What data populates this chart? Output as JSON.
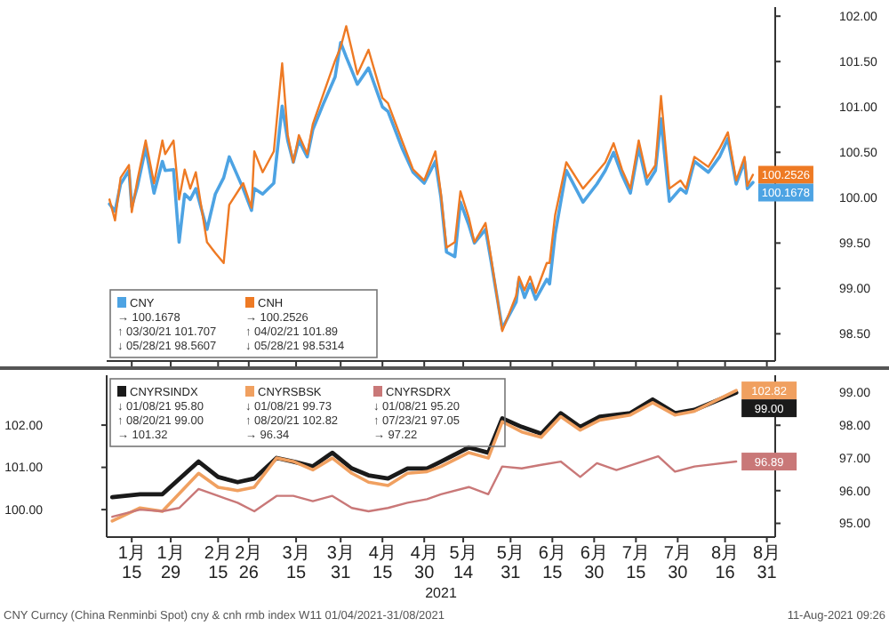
{
  "chart_data": [
    {
      "type": "line",
      "x": [
        "2021-01-07",
        "2021-01-09",
        "2021-01-11",
        "2021-01-14",
        "2021-01-15",
        "2021-01-17",
        "2021-01-20",
        "2021-01-23",
        "2021-01-26",
        "2021-01-27",
        "2021-01-30",
        "2021-02-01",
        "2021-02-03",
        "2021-02-05",
        "2021-02-07",
        "2021-02-11",
        "2021-02-14",
        "2021-02-17",
        "2021-02-19",
        "2021-02-24",
        "2021-02-27",
        "2021-02-28",
        "2021-03-03",
        "2021-03-07",
        "2021-03-10",
        "2021-03-12",
        "2021-03-14",
        "2021-03-16",
        "2021-03-19",
        "2021-03-21",
        "2021-03-25",
        "2021-03-29",
        "2021-03-31",
        "2021-04-02",
        "2021-04-04",
        "2021-04-06",
        "2021-04-10",
        "2021-04-15",
        "2021-04-17",
        "2021-04-22",
        "2021-04-26",
        "2021-04-30",
        "2021-05-04",
        "2021-05-06",
        "2021-05-08",
        "2021-05-11",
        "2021-05-13",
        "2021-05-16",
        "2021-05-18",
        "2021-05-22",
        "2021-05-24",
        "2021-05-28",
        "2021-06-02",
        "2021-06-03",
        "2021-06-05",
        "2021-06-07",
        "2021-06-09",
        "2021-06-13",
        "2021-06-14",
        "2021-06-16",
        "2021-06-20",
        "2021-06-26",
        "2021-07-01",
        "2021-07-04",
        "2021-07-07",
        "2021-07-10",
        "2021-07-13",
        "2021-07-16",
        "2021-07-19",
        "2021-07-22",
        "2021-07-24",
        "2021-07-27",
        "2021-07-31",
        "2021-08-02",
        "2021-08-05",
        "2021-08-10",
        "2021-08-14",
        "2021-08-17",
        "2021-08-20",
        "2021-08-23",
        "2021-08-24",
        "2021-08-26"
      ],
      "xlim": [
        "2021-01-06",
        "2021-09-03"
      ],
      "xticks": [
        {
          "value": "2021-01-15",
          "label": null
        },
        {
          "value": "2021-01-29",
          "label": null
        },
        {
          "value": "2021-02-15",
          "label": null
        },
        {
          "value": "2021-02-26",
          "label": null
        },
        {
          "value": "2021-03-15",
          "label": null
        },
        {
          "value": "2021-03-31",
          "label": null
        },
        {
          "value": "2021-04-15",
          "label": null
        },
        {
          "value": "2021-04-30",
          "label": null
        },
        {
          "value": "2021-05-14",
          "label": null
        },
        {
          "value": "2021-05-31",
          "label": null
        },
        {
          "value": "2021-06-15",
          "label": null
        },
        {
          "value": "2021-06-30",
          "label": null
        },
        {
          "value": "2021-07-15",
          "label": null
        },
        {
          "value": "2021-07-30",
          "label": null
        },
        {
          "value": "2021-08-16",
          "label": null
        },
        {
          "value": "2021-08-31",
          "label": null
        }
      ],
      "ylim": [
        98.2,
        102.1
      ],
      "yticks": [
        {
          "value": 98.5,
          "label": "98.50"
        },
        {
          "value": 99,
          "label": "99.00"
        },
        {
          "value": 99.5,
          "label": "99.50"
        },
        {
          "value": 100,
          "label": "100.00"
        },
        {
          "value": 100.5,
          "label": "100.50"
        },
        {
          "value": 101,
          "label": "101.00"
        },
        {
          "value": 101.5,
          "label": "101.50"
        },
        {
          "value": 102,
          "label": "102.00"
        }
      ],
      "tick_labels": "y",
      "legend": "bottom left",
      "series": [
        {
          "name": "CNY",
          "color": "#4da3e3",
          "values": [
            99.93,
            99.85,
            100.15,
            100.3,
            99.9,
            100.12,
            100.55,
            100.05,
            100.4,
            100.3,
            100.31,
            99.51,
            100.04,
            99.98,
            100.1,
            99.65,
            100.04,
            100.22,
            100.45,
            100.1,
            99.86,
            100.1,
            100.04,
            100.16,
            101.01,
            100.63,
            100.39,
            100.63,
            100.45,
            100.75,
            101.05,
            101.33,
            101.71,
            101.55,
            101.4,
            101.25,
            101.43,
            101.0,
            100.95,
            100.55,
            100.28,
            100.16,
            100.4,
            100.0,
            99.4,
            99.35,
            99.95,
            99.7,
            99.5,
            99.65,
            99.3,
            98.56,
            98.85,
            99.1,
            98.9,
            99.05,
            98.88,
            99.1,
            99.05,
            99.6,
            100.3,
            99.95,
            100.15,
            100.3,
            100.5,
            100.25,
            100.05,
            100.55,
            100.15,
            100.3,
            100.87,
            99.96,
            100.1,
            100.05,
            100.4,
            100.28,
            100.45,
            100.65,
            100.15,
            100.4,
            100.1,
            100.1678
          ],
          "value_labels": [
            null,
            null,
            null,
            null,
            null,
            null,
            null,
            null,
            null,
            null,
            null,
            null,
            null,
            null,
            null,
            null,
            null,
            null,
            null,
            null,
            null,
            null,
            null,
            null,
            null,
            null,
            null,
            null,
            null,
            null,
            null,
            null,
            null,
            null,
            null,
            null,
            null,
            null,
            null,
            null,
            null,
            null,
            null,
            null,
            null,
            null,
            null,
            null,
            null,
            null,
            null,
            null,
            null,
            null,
            null,
            null,
            null,
            null,
            null,
            null,
            null,
            null,
            null,
            null,
            null,
            null,
            null,
            null,
            null,
            null,
            null,
            null,
            null,
            null,
            null,
            null,
            null,
            null,
            null,
            null,
            null,
            "100.1678"
          ]
        },
        {
          "name": "CNH",
          "color": "#ee7a24",
          "values": [
            99.98,
            99.75,
            100.22,
            100.36,
            99.84,
            100.19,
            100.63,
            100.16,
            100.63,
            100.48,
            100.63,
            99.98,
            100.31,
            100.1,
            100.28,
            99.51,
            99.39,
            99.28,
            99.92,
            100.16,
            99.89,
            100.51,
            100.28,
            100.51,
            101.48,
            100.69,
            100.39,
            100.69,
            100.48,
            100.81,
            101.16,
            101.51,
            101.66,
            101.89,
            101.63,
            101.36,
            101.63,
            101.1,
            101.04,
            100.63,
            100.31,
            100.19,
            100.51,
            100.04,
            99.45,
            99.51,
            100.07,
            99.78,
            99.51,
            99.72,
            99.34,
            98.53,
            98.92,
            99.13,
            98.98,
            99.13,
            98.95,
            99.28,
            99.28,
            99.81,
            100.39,
            100.1,
            100.28,
            100.39,
            100.6,
            100.31,
            100.1,
            100.63,
            100.22,
            100.36,
            101.12,
            100.1,
            100.19,
            100.1,
            100.45,
            100.34,
            100.54,
            100.72,
            100.19,
            100.45,
            100.13,
            100.2526
          ],
          "value_labels": [
            null,
            null,
            null,
            null,
            null,
            null,
            null,
            null,
            null,
            null,
            null,
            null,
            null,
            null,
            null,
            null,
            null,
            null,
            null,
            null,
            null,
            null,
            null,
            null,
            null,
            null,
            null,
            null,
            null,
            null,
            null,
            null,
            null,
            null,
            null,
            null,
            null,
            null,
            null,
            null,
            null,
            null,
            null,
            null,
            null,
            null,
            null,
            null,
            null,
            null,
            null,
            null,
            null,
            null,
            null,
            null,
            null,
            null,
            null,
            null,
            null,
            null,
            null,
            null,
            null,
            null,
            null,
            null,
            null,
            null,
            null,
            null,
            null,
            null,
            null,
            null,
            null,
            null,
            null,
            null,
            null,
            "100.2526"
          ]
        }
      ],
      "annotations": [
        "→ 100.1678",
        "→ 100.2526",
        "↑ 03/30/21 101.707",
        "↑ 04/02/21 101.89",
        "↓ 05/28/21 98.5607",
        "↓ 05/28/21 98.5314"
      ]
    },
    {
      "type": "line",
      "xlim": [
        "2021-01-06",
        "2021-09-03"
      ],
      "xticks": [
        {
          "value": "2021-01-15",
          "label": "1月 15"
        },
        {
          "value": "2021-01-29",
          "label": "1月 29"
        },
        {
          "value": "2021-02-15",
          "label": "2月 15"
        },
        {
          "value": "2021-02-26",
          "label": "2月 26"
        },
        {
          "value": "2021-03-15",
          "label": "3月 15"
        },
        {
          "value": "2021-03-31",
          "label": "3月 31"
        },
        {
          "value": "2021-04-15",
          "label": "4月 15"
        },
        {
          "value": "2021-04-30",
          "label": "4月 30"
        },
        {
          "value": "2021-05-14",
          "label": "5月 14"
        },
        {
          "value": "2021-05-31",
          "label": "5月 31"
        },
        {
          "value": "2021-06-15",
          "label": "6月 15"
        },
        {
          "value": "2021-06-30",
          "label": "6月 30"
        },
        {
          "value": "2021-07-15",
          "label": "7月 15"
        },
        {
          "value": "2021-07-30",
          "label": "7月 30"
        },
        {
          "value": "2021-08-16",
          "label": "8月 16"
        },
        {
          "value": "2021-08-31",
          "label": "8月 31"
        }
      ],
      "xlabel": "2021",
      "ylim": [
        99.35,
        103.18
      ],
      "yticks": [
        {
          "value": 100,
          "label": "100.00"
        },
        {
          "value": 101,
          "label": "101.00"
        },
        {
          "value": 102,
          "label": "102.00"
        }
      ],
      "y2lim": [
        94.58,
        99.53
      ],
      "y2ticks": [
        {
          "value": 95,
          "label": "95.00"
        },
        {
          "value": 96,
          "label": "96.00"
        },
        {
          "value": 97,
          "label": "97.00"
        },
        {
          "value": 98,
          "label": "98.00"
        },
        {
          "value": 99,
          "label": "99.00"
        }
      ],
      "legend": "top left",
      "series": [
        {
          "name": "CNYRSINDX",
          "color": "#1a1a1a",
          "axis": "y2",
          "x": [
            "2021-01-08",
            "2021-01-18",
            "2021-01-26",
            "2021-02-08",
            "2021-02-15",
            "2021-02-22",
            "2021-02-28",
            "2021-03-08",
            "2021-03-14",
            "2021-03-21",
            "2021-03-28",
            "2021-04-04",
            "2021-04-10",
            "2021-04-17",
            "2021-04-24",
            "2021-05-01",
            "2021-05-06",
            "2021-05-16",
            "2021-05-23",
            "2021-05-28",
            "2021-06-04",
            "2021-06-11",
            "2021-06-18",
            "2021-06-25",
            "2021-07-02",
            "2021-07-13",
            "2021-07-21",
            "2021-07-29",
            "2021-08-05",
            "2021-08-20"
          ],
          "values": [
            95.8,
            95.89,
            95.89,
            96.89,
            96.42,
            96.26,
            96.37,
            97.0,
            96.89,
            96.74,
            97.16,
            96.68,
            96.47,
            96.37,
            96.68,
            96.68,
            96.89,
            97.32,
            97.16,
            98.21,
            97.95,
            97.74,
            98.37,
            97.95,
            98.26,
            98.37,
            98.79,
            98.37,
            98.47,
            99.0
          ],
          "value_labels": [
            null,
            null,
            null,
            null,
            null,
            null,
            null,
            null,
            null,
            null,
            null,
            null,
            null,
            null,
            null,
            null,
            null,
            null,
            null,
            null,
            null,
            null,
            null,
            null,
            null,
            null,
            null,
            null,
            null,
            "99.00"
          ]
        },
        {
          "name": "CNYRSBSK",
          "color": "#f0a060",
          "x": [
            "2021-01-08",
            "2021-01-18",
            "2021-01-26",
            "2021-02-08",
            "2021-02-15",
            "2021-02-22",
            "2021-02-28",
            "2021-03-08",
            "2021-03-14",
            "2021-03-21",
            "2021-03-28",
            "2021-04-04",
            "2021-04-10",
            "2021-04-17",
            "2021-04-24",
            "2021-05-01",
            "2021-05-06",
            "2021-05-16",
            "2021-05-23",
            "2021-05-28",
            "2021-06-04",
            "2021-06-11",
            "2021-06-18",
            "2021-06-25",
            "2021-07-02",
            "2021-07-13",
            "2021-07-21",
            "2021-07-29",
            "2021-08-05",
            "2021-08-20"
          ],
          "values": [
            99.73,
            100.04,
            99.96,
            100.86,
            100.53,
            100.45,
            100.53,
            101.22,
            101.14,
            100.94,
            101.22,
            100.86,
            100.65,
            100.57,
            100.86,
            100.9,
            101.02,
            101.35,
            101.22,
            102.08,
            101.84,
            101.71,
            102.2,
            101.88,
            102.12,
            102.24,
            102.53,
            102.24,
            102.33,
            102.82
          ],
          "value_labels": [
            null,
            null,
            null,
            null,
            null,
            null,
            null,
            null,
            null,
            null,
            null,
            null,
            null,
            null,
            null,
            null,
            null,
            null,
            null,
            null,
            null,
            null,
            null,
            null,
            null,
            null,
            null,
            null,
            null,
            "102.82"
          ]
        },
        {
          "name": "CNYRSDRX",
          "color": "#c97878",
          "axis": "y2",
          "x": [
            "2021-01-08",
            "2021-01-18",
            "2021-01-26",
            "2021-02-01",
            "2021-02-08",
            "2021-02-15",
            "2021-02-22",
            "2021-02-28",
            "2021-03-08",
            "2021-03-14",
            "2021-03-21",
            "2021-03-28",
            "2021-04-04",
            "2021-04-10",
            "2021-04-17",
            "2021-04-24",
            "2021-05-01",
            "2021-05-06",
            "2021-05-16",
            "2021-05-23",
            "2021-05-28",
            "2021-06-04",
            "2021-06-11",
            "2021-06-18",
            "2021-06-25",
            "2021-07-01",
            "2021-07-08",
            "2021-07-23",
            "2021-07-29",
            "2021-08-05",
            "2021-08-20"
          ],
          "values": [
            95.2,
            95.42,
            95.37,
            95.47,
            96.05,
            95.84,
            95.63,
            95.37,
            95.84,
            95.84,
            95.68,
            95.84,
            95.47,
            95.37,
            95.47,
            95.63,
            95.74,
            95.89,
            96.11,
            95.89,
            96.74,
            96.68,
            96.79,
            96.89,
            96.42,
            96.84,
            96.63,
            97.05,
            96.58,
            96.74,
            96.89
          ],
          "value_labels": [
            null,
            null,
            null,
            null,
            null,
            null,
            null,
            null,
            null,
            null,
            null,
            null,
            null,
            null,
            null,
            null,
            null,
            null,
            null,
            null,
            null,
            null,
            null,
            null,
            null,
            null,
            null,
            null,
            null,
            null,
            "96.89"
          ]
        }
      ],
      "annotations": [
        "↓ 01/08/21 95.80",
        "↓ 01/08/21 99.73",
        "↓ 01/08/21 95.20",
        "↑ 08/20/21 99.00",
        "↑ 08/20/21 102.82",
        "↑ 07/23/21 97.05",
        "→ 101.32",
        "→ 96.34",
        "→ 97.22",
        "CNY Curncy (China Renminbi Spot) cny & cnh rmb index W11 01/04/2021-31/08/2021",
        "11-Aug-2021 09:26"
      ]
    }
  ]
}
